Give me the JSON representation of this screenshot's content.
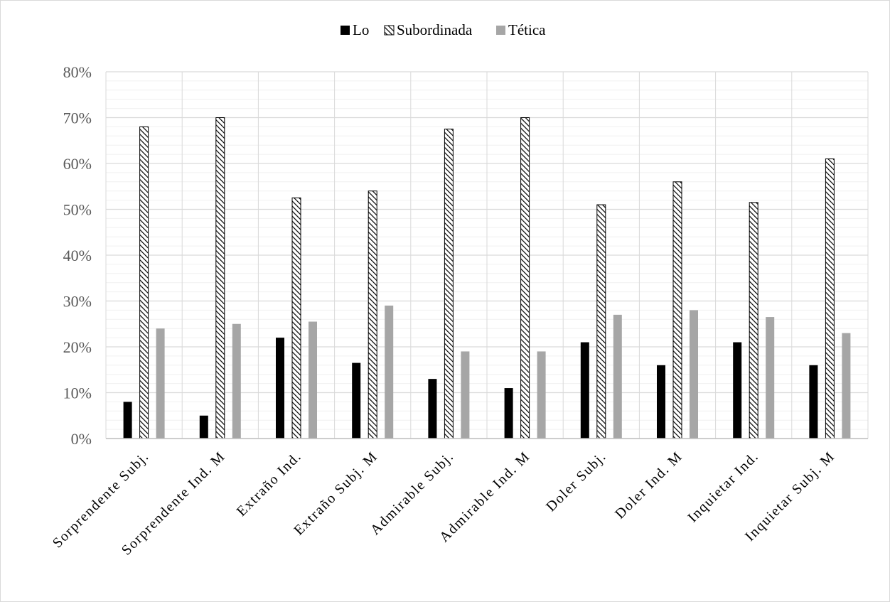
{
  "chart_data": {
    "type": "bar",
    "title": "",
    "xlabel": "",
    "ylabel": "",
    "categories": [
      "Sorprendente Subj.",
      "Sorprendente Ind. M",
      "Extraño Ind.",
      "Extraño Subj. M",
      "Admirable Subj.",
      "Admirable Ind. M",
      "Doler Subj.",
      "Doler Ind. M",
      "Inquietar Ind.",
      "Inquietar Subj. M"
    ],
    "series": [
      {
        "name": "Lo",
        "color": "#000000",
        "pattern": "solid",
        "values": [
          0.08,
          0.05,
          0.22,
          0.165,
          0.13,
          0.11,
          0.21,
          0.16,
          0.21,
          0.16
        ]
      },
      {
        "name": "Subordinada",
        "color": "#000000",
        "pattern": "diagonal-hatch",
        "values": [
          0.68,
          0.7,
          0.525,
          0.54,
          0.675,
          0.7,
          0.51,
          0.56,
          0.515,
          0.61
        ]
      },
      {
        "name": "Tética",
        "color": "#a6a6a6",
        "pattern": "solid",
        "values": [
          0.24,
          0.25,
          0.255,
          0.29,
          0.19,
          0.19,
          0.27,
          0.28,
          0.265,
          0.23
        ]
      }
    ],
    "ylim": [
      0,
      0.8
    ],
    "yticks": [
      "0%",
      "10%",
      "20%",
      "30%",
      "40%",
      "50%",
      "60%",
      "70%",
      "80%"
    ],
    "grid": true,
    "legend_position": "top-center"
  }
}
